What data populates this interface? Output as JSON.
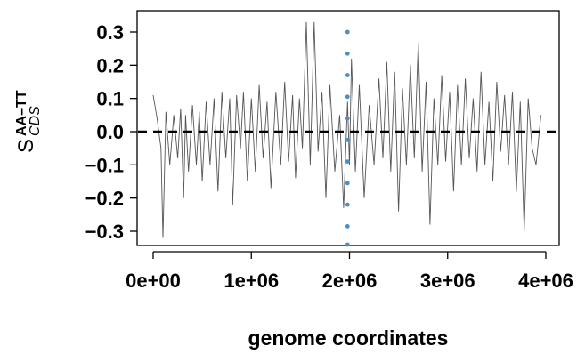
{
  "chart_data": {
    "type": "line",
    "title": "",
    "xlabel": "genome coordinates",
    "ylabel": {
      "main": "S",
      "superscript": "AA–TT",
      "subscript": "CDS"
    },
    "xlim": [
      0,
      4000000
    ],
    "ylim": [
      -0.33,
      0.33
    ],
    "x_ticks": [
      0,
      1000000,
      2000000,
      3000000,
      4000000
    ],
    "x_tick_labels": [
      "0e+00",
      "1e+06",
      "2e+06",
      "3e+06",
      "4e+06"
    ],
    "y_ticks": [
      0.3,
      0.2,
      0.1,
      0.0,
      -0.1,
      -0.2,
      -0.3
    ],
    "y_tick_labels": [
      "0.3",
      "0.2",
      "0.1",
      "0.0",
      "−0.1",
      "−0.2",
      "−0.3"
    ],
    "grid": false,
    "series": [
      {
        "color": "#555555",
        "x": [
          0,
          40000,
          80000,
          100000,
          130000,
          170000,
          210000,
          250000,
          280000,
          310000,
          330000,
          360000,
          400000,
          440000,
          470000,
          500000,
          540000,
          580000,
          620000,
          660000,
          700000,
          740000,
          780000,
          810000,
          850000,
          890000,
          920000,
          960000,
          1000000,
          1040000,
          1080000,
          1120000,
          1160000,
          1200000,
          1250000,
          1300000,
          1340000,
          1380000,
          1420000,
          1450000,
          1490000,
          1520000,
          1560000,
          1600000,
          1640000,
          1680000,
          1720000,
          1760000,
          1800000,
          1850000,
          1900000,
          1940000,
          1980000,
          2000000,
          2020000,
          2060000,
          2100000,
          2150000,
          2200000,
          2250000,
          2300000,
          2340000,
          2380000,
          2420000,
          2460000,
          2500000,
          2540000,
          2580000,
          2620000,
          2660000,
          2700000,
          2740000,
          2780000,
          2820000,
          2860000,
          2900000,
          2940000,
          2980000,
          3020000,
          3060000,
          3100000,
          3140000,
          3180000,
          3220000,
          3260000,
          3300000,
          3340000,
          3380000,
          3420000,
          3460000,
          3500000,
          3540000,
          3580000,
          3620000,
          3660000,
          3700000,
          3740000,
          3780000,
          3820000,
          3860000,
          3900000,
          3950000
        ],
        "y": [
          0.11,
          0.04,
          -0.05,
          -0.32,
          0.06,
          -0.1,
          0.05,
          -0.08,
          0.07,
          -0.2,
          0.05,
          -0.12,
          0.08,
          -0.1,
          0.06,
          -0.15,
          0.09,
          -0.1,
          0.1,
          -0.18,
          0.12,
          -0.08,
          0.1,
          -0.22,
          0.11,
          -0.05,
          0.12,
          -0.15,
          0.1,
          -0.12,
          0.14,
          -0.08,
          0.09,
          -0.17,
          0.12,
          -0.1,
          0.15,
          -0.09,
          0.11,
          -0.14,
          0.1,
          -0.05,
          0.33,
          -0.1,
          0.33,
          -0.06,
          0.12,
          -0.2,
          0.14,
          -0.12,
          0.05,
          -0.23,
          0.09,
          -0.1,
          0.22,
          -0.12,
          0.14,
          -0.2,
          0.08,
          -0.1,
          0.16,
          -0.08,
          0.21,
          -0.12,
          0.18,
          -0.24,
          0.13,
          -0.1,
          0.2,
          -0.08,
          0.27,
          -0.12,
          0.15,
          -0.28,
          0.1,
          -0.1,
          0.17,
          -0.09,
          0.12,
          -0.18,
          0.14,
          -0.1,
          0.16,
          -0.08,
          0.1,
          -0.12,
          0.18,
          -0.1,
          0.09,
          -0.15,
          0.15,
          -0.06,
          0.11,
          -0.1,
          0.12,
          -0.18,
          0.09,
          -0.3,
          0.1,
          -0.05,
          -0.1,
          0.05
        ]
      }
    ],
    "reference_line": {
      "y": 0,
      "style": "dashed",
      "color": "#000000"
    },
    "marker_points": {
      "color": "#4a90c8",
      "x": 1980000,
      "y": [
        0.3,
        0.235,
        0.17,
        0.105,
        0.04,
        -0.025,
        -0.09,
        -0.155,
        -0.22,
        -0.285,
        -0.35
      ]
    }
  }
}
